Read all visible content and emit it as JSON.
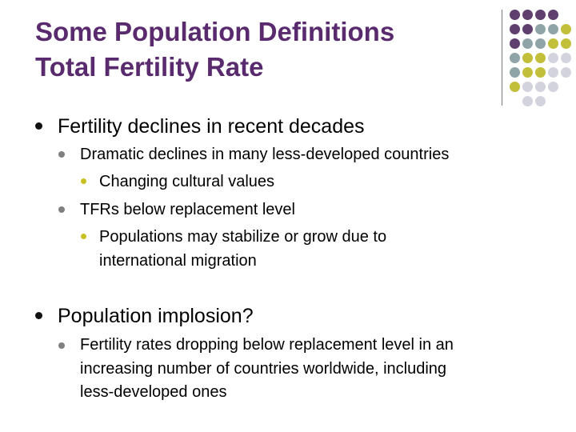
{
  "slide": {
    "title_line1": "Some Population Definitions",
    "title_line2": "Total Fertility Rate",
    "bullets": [
      {
        "text": "Fertility declines in recent decades",
        "sub": [
          {
            "text": "Dramatic declines in many less-developed countries",
            "sub": [
              "Changing cultural values"
            ]
          },
          {
            "text": "TFRs below replacement level",
            "sub": [
              "Populations may stabilize or grow due to",
              "international migration"
            ]
          }
        ]
      },
      {
        "text": "Population implosion?",
        "sub": [
          {
            "lines": [
              "Fertility rates dropping below replacement level in an",
              "increasing number of countries worldwide, including",
              "less-developed ones"
            ]
          }
        ]
      }
    ]
  },
  "colors": {
    "title": "#5a2a6e",
    "dot_purple": "#5e3f6e",
    "dot_teal": "#8fa4a6",
    "dot_olive": "#c2bf3a",
    "dot_light": "#d3d3de",
    "bullet_level3": "#c8c020"
  }
}
